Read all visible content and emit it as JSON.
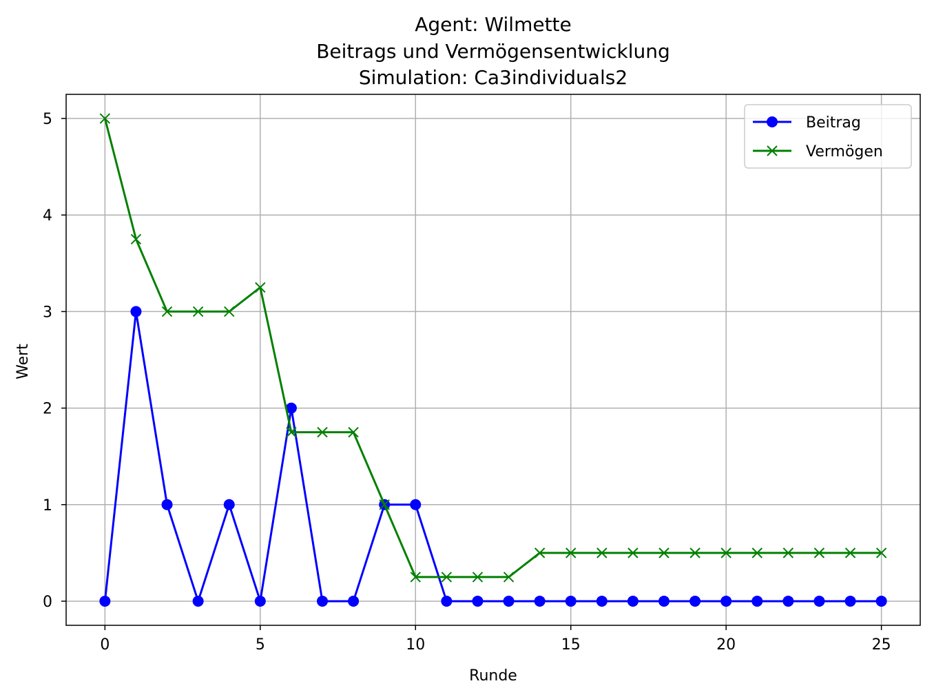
{
  "chart_data": {
    "type": "line",
    "title_lines": [
      "Agent: Wilmette",
      "Beitrags und Vermögensentwicklung",
      "Simulation: Ca3individuals2"
    ],
    "xlabel": "Runde",
    "ylabel": "Wert",
    "xlim": [
      -1.25,
      26.25
    ],
    "ylim": [
      -0.25,
      5.25
    ],
    "xticks": [
      0,
      5,
      10,
      15,
      20,
      25
    ],
    "yticks": [
      0,
      1,
      2,
      3,
      4,
      5
    ],
    "grid": true,
    "legend_position": "top-right",
    "x": [
      0,
      1,
      2,
      3,
      4,
      5,
      6,
      7,
      8,
      9,
      10,
      11,
      12,
      13,
      14,
      15,
      16,
      17,
      18,
      19,
      20,
      21,
      22,
      23,
      24,
      25
    ],
    "series": [
      {
        "name": "Beitrag",
        "color": "#0000ff",
        "marker": "circle",
        "values": [
          0,
          3,
          1,
          0,
          1,
          0,
          2,
          0,
          0,
          1,
          1,
          0,
          0,
          0,
          0,
          0,
          0,
          0,
          0,
          0,
          0,
          0,
          0,
          0,
          0,
          0
        ]
      },
      {
        "name": "Vermögen",
        "color": "#008000",
        "marker": "x",
        "values": [
          5,
          3.75,
          3,
          3,
          3,
          3.25,
          1.75,
          1.75,
          1.75,
          1,
          0.25,
          0.25,
          0.25,
          0.25,
          0.5,
          0.5,
          0.5,
          0.5,
          0.5,
          0.5,
          0.5,
          0.5,
          0.5,
          0.5,
          0.5,
          0.5
        ]
      }
    ]
  }
}
